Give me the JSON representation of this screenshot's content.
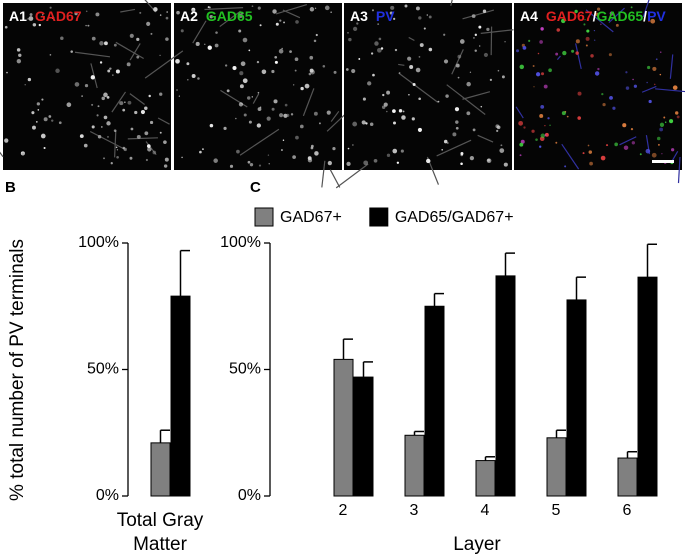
{
  "panels": [
    {
      "label": "A1",
      "stain": [
        {
          "text": "GAD67",
          "color": "#e02020"
        }
      ]
    },
    {
      "label": "A2",
      "stain": [
        {
          "text": "GAD65",
          "color": "#22c022"
        }
      ]
    },
    {
      "label": "A3",
      "stain": [
        {
          "text": "PV",
          "color": "#2030e0"
        }
      ]
    },
    {
      "label": "A4",
      "stain": [
        {
          "text": "GAD67",
          "color": "#e02020"
        },
        {
          "text": "/",
          "color": "#ffffff"
        },
        {
          "text": "GAD65",
          "color": "#22c022"
        },
        {
          "text": "/",
          "color": "#ffffff"
        },
        {
          "text": "PV",
          "color": "#2030e0"
        }
      ]
    }
  ],
  "chart_data": [
    {
      "type": "bar",
      "panel": "B",
      "ylabel": "% total number of PV terminals",
      "categories": [
        "Total Gray Matter"
      ],
      "series": [
        {
          "name": "GAD67+",
          "color": "#808080",
          "values": [
            21
          ],
          "errors": [
            5
          ]
        },
        {
          "name": "GAD65/GAD67+",
          "color": "#000000",
          "values": [
            79
          ],
          "errors": [
            18
          ]
        }
      ],
      "ylim": [
        0,
        100
      ],
      "yticks": [
        {
          "value": 0,
          "label": "0%"
        },
        {
          "value": 50,
          "label": "50%"
        },
        {
          "value": 100,
          "label": "100%"
        }
      ]
    },
    {
      "type": "bar",
      "panel": "C",
      "xlabel": "Layer",
      "categories": [
        "2",
        "3",
        "4",
        "5",
        "6"
      ],
      "series": [
        {
          "name": "GAD67+",
          "color": "#808080",
          "values": [
            54,
            24,
            14,
            23,
            15
          ],
          "errors": [
            8,
            1.5,
            1.5,
            3,
            2.5
          ]
        },
        {
          "name": "GAD65/GAD67+",
          "color": "#000000",
          "values": [
            47,
            75,
            87,
            77.5,
            86.5
          ],
          "errors": [
            6,
            5,
            9,
            9,
            13
          ]
        }
      ],
      "ylim": [
        0,
        100
      ],
      "yticks": [
        {
          "value": 0,
          "label": "0%"
        },
        {
          "value": 50,
          "label": "50%"
        },
        {
          "value": 100,
          "label": "100%"
        }
      ],
      "legend": "top-left"
    }
  ]
}
